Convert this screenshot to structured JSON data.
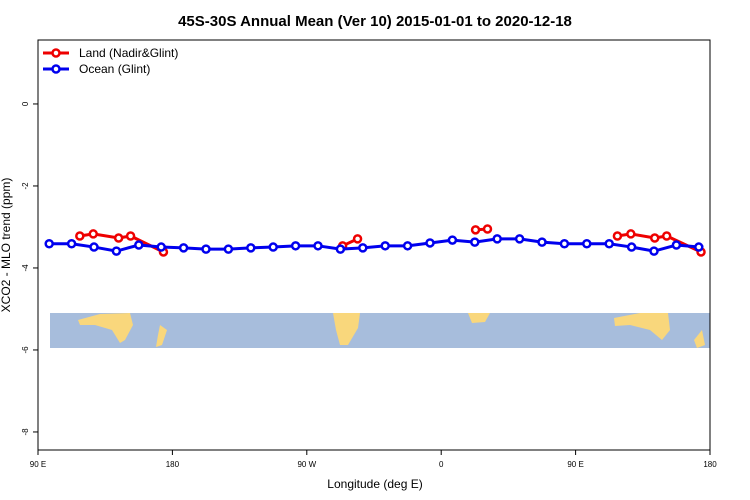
{
  "chart_data": {
    "type": "line",
    "title": "45S-30S Annual Mean (Ver 10)   2015-01-01 to 2020-12-18",
    "xlabel": "Longitude (deg E)",
    "ylabel": "XCO2 - MLO trend (ppm)",
    "xlim": [
      90,
      540
    ],
    "xticks": [
      {
        "value": 90,
        "label": "90 E"
      },
      {
        "value": 180,
        "label": "180"
      },
      {
        "value": 270,
        "label": "90 W"
      },
      {
        "value": 360,
        "label": "0"
      },
      {
        "value": 450,
        "label": "90 E"
      },
      {
        "value": 540,
        "label": "180"
      }
    ],
    "ylim": [
      -8.44,
      1.56
    ],
    "yticks": [
      0,
      -2,
      -4,
      -6,
      -8
    ],
    "legend": "top-left",
    "series": [
      {
        "name": "Land (Nadir&Glint)",
        "color": "#ee0000",
        "x": [
          118,
          127,
          144,
          152,
          174,
          null,
          294,
          304,
          null,
          383,
          391,
          null,
          478,
          487,
          503,
          511,
          534
        ],
        "values": [
          -3.22,
          -3.17,
          -3.27,
          -3.22,
          -3.61,
          null,
          -3.46,
          -3.29,
          null,
          -3.07,
          -3.05,
          null,
          -3.22,
          -3.17,
          -3.27,
          -3.22,
          -3.61
        ]
      },
      {
        "name": "Ocean (Glint)",
        "color": "#0000ee",
        "x": [
          97.5,
          112.5,
          127.5,
          142.5,
          157.5,
          172.5,
          187.5,
          202.5,
          217.5,
          232.5,
          247.5,
          262.5,
          277.5,
          292.5,
          307.5,
          322.5,
          337.5,
          352.5,
          367.5,
          382.5,
          397.5,
          412.5,
          427.5,
          442.5,
          457.5,
          472.5,
          487.5,
          502.5,
          517.5,
          532.5
        ],
        "values": [
          -3.41,
          -3.41,
          -3.49,
          -3.59,
          -3.44,
          -3.49,
          -3.51,
          -3.54,
          -3.54,
          -3.51,
          -3.49,
          -3.46,
          -3.46,
          -3.54,
          -3.51,
          -3.46,
          -3.46,
          -3.39,
          -3.32,
          -3.37,
          -3.29,
          -3.29,
          -3.37,
          -3.41,
          -3.41,
          -3.41,
          -3.49,
          -3.59,
          -3.44,
          -3.49
        ]
      }
    ]
  }
}
